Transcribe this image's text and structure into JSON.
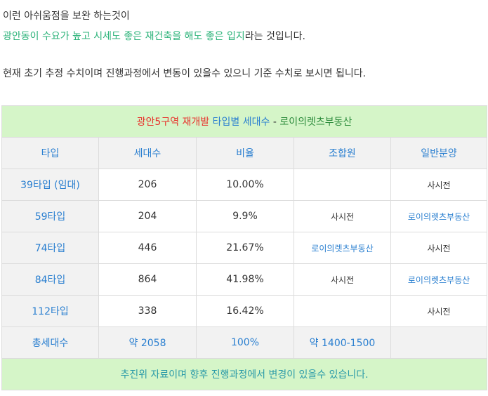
{
  "intro": {
    "line1": "이런 아쉬움점을 보완 하는것이",
    "line2_highlight": "광안동이 수요가 높고 시세도 좋은 재건축을 해도 좋은 입지",
    "line2_rest": "라는 것입니다.",
    "line3": "현재 초기 추정 수치이며 진행과정에서 변동이 있을수 있으니 기준 수치로 보시면 됩니다."
  },
  "table": {
    "title_red": "광안5구역 재개발",
    "title_blue": "타입별 세대수",
    "title_sep": " - ",
    "title_green": "로이의렛츠부동산",
    "headers": [
      "타입",
      "세대수",
      "비율",
      "조합원",
      "일반분양"
    ],
    "rows": [
      {
        "type": "39타입 (임대)",
        "units": "206",
        "ratio": "10.00%",
        "member": "",
        "general": "사시전"
      },
      {
        "type": "59타입",
        "units": "204",
        "ratio": "9.9%",
        "member": "사시전",
        "general": "로이의렛츠부동산"
      },
      {
        "type": "74타입",
        "units": "446",
        "ratio": "21.67%",
        "member": "로이의렛츠부동산",
        "general": "사시전"
      },
      {
        "type": "84타입",
        "units": "864",
        "ratio": "41.98%",
        "member": "사시전",
        "general": "로이의렛츠부동산"
      },
      {
        "type": "112타입",
        "units": "338",
        "ratio": "16.42%",
        "member": "",
        "general": "사시전"
      }
    ],
    "total": {
      "label": "총세대수",
      "units": "약 2058",
      "ratio": "100%",
      "member": "약 1400-1500",
      "general": ""
    },
    "footer": "추진위 자료이며 향후 진행과정에서 변경이 있을수 있습니다."
  },
  "colors": {
    "highlight_green": "#2db37a",
    "title_red": "#e8302a",
    "accent_blue": "#2a7fd0",
    "band_green": "#d5f5c8"
  }
}
